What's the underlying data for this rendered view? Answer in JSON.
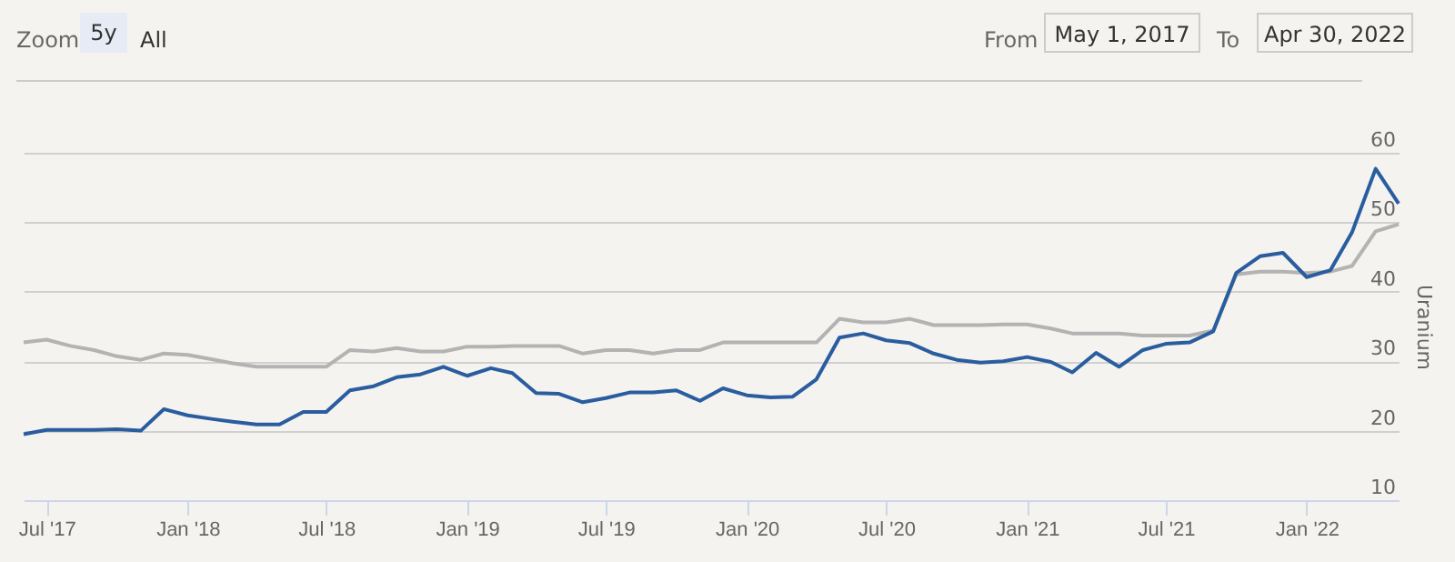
{
  "chart_data": {
    "type": "line",
    "ylabel": "Uranium",
    "annotations": [
      "Zoom",
      "5y",
      "All",
      "From",
      "May 1, 2017",
      "To",
      "Apr 30, 2022"
    ],
    "x": [
      "2017-06",
      "2017-07",
      "2017-08",
      "2017-09",
      "2017-10",
      "2017-11",
      "2017-12",
      "2018-01",
      "2018-02",
      "2018-03",
      "2018-04",
      "2018-05",
      "2018-06",
      "2018-07",
      "2018-08",
      "2018-09",
      "2018-10",
      "2018-11",
      "2018-12",
      "2019-01",
      "2019-02",
      "2019-03",
      "2019-04",
      "2019-05",
      "2019-06",
      "2019-07",
      "2019-08",
      "2019-09",
      "2019-10",
      "2019-11",
      "2019-12",
      "2020-01",
      "2020-02",
      "2020-03",
      "2020-04",
      "2020-05",
      "2020-06",
      "2020-07",
      "2020-08",
      "2020-09",
      "2020-10",
      "2020-11",
      "2020-12",
      "2021-01",
      "2021-02",
      "2021-03",
      "2021-04",
      "2021-05",
      "2021-06",
      "2021-07",
      "2021-08",
      "2021-09",
      "2021-10",
      "2021-11",
      "2021-12",
      "2022-01",
      "2022-02",
      "2022-03",
      "2022-04",
      "2022-05"
    ],
    "series": [
      {
        "color": "#b3b3b3",
        "values": [
          32.7,
          33.1,
          32.2,
          31.6,
          30.7,
          30.2,
          31.1,
          30.9,
          30.3,
          29.7,
          29.2,
          29.2,
          29.2,
          29.2,
          31.6,
          31.4,
          31.9,
          31.4,
          31.4,
          32.1,
          32.1,
          32.2,
          32.2,
          32.2,
          31.1,
          31.6,
          31.6,
          31.1,
          31.6,
          31.6,
          32.7,
          32.7,
          32.7,
          32.7,
          32.7,
          36.1,
          35.6,
          35.6,
          36.1,
          35.2,
          35.2,
          35.2,
          35.3,
          35.3,
          34.7,
          34.0,
          34.0,
          34.0,
          33.7,
          33.7,
          33.7,
          34.4,
          42.5,
          42.9,
          42.9,
          42.7,
          42.9,
          43.7,
          48.7,
          49.7
        ]
      },
      {
        "color": "#2a5d9f",
        "values": [
          19.5,
          20.1,
          20.1,
          20.1,
          20.2,
          20.0,
          23.1,
          22.2,
          21.7,
          21.3,
          20.9,
          20.9,
          22.7,
          22.7,
          25.8,
          26.4,
          27.7,
          28.1,
          29.2,
          27.9,
          29.0,
          28.3,
          25.4,
          25.3,
          24.1,
          24.7,
          25.5,
          25.5,
          25.8,
          24.3,
          26.1,
          25.1,
          24.8,
          24.9,
          27.4,
          33.4,
          34.0,
          33.0,
          32.6,
          31.1,
          30.2,
          29.8,
          30.0,
          30.6,
          29.9,
          28.4,
          31.2,
          29.2,
          31.6,
          32.5,
          32.7,
          34.3,
          42.7,
          45.1,
          45.6,
          42.1,
          43.1,
          48.5,
          57.7,
          52.7
        ]
      }
    ],
    "xlim": [
      "2017-06",
      "2022-05"
    ],
    "xticks": [
      {
        "value": "2017-07",
        "label": "Jul '17"
      },
      {
        "value": "2018-01",
        "label": "Jan '18"
      },
      {
        "value": "2018-07",
        "label": "Jul '18"
      },
      {
        "value": "2019-01",
        "label": "Jan '19"
      },
      {
        "value": "2019-07",
        "label": "Jul '19"
      },
      {
        "value": "2020-01",
        "label": "Jan '20"
      },
      {
        "value": "2020-07",
        "label": "Jul '20"
      },
      {
        "value": "2021-01",
        "label": "Jan '21"
      },
      {
        "value": "2021-07",
        "label": "Jul '21"
      },
      {
        "value": "2022-01",
        "label": "Jan '22"
      }
    ],
    "ylim": [
      10,
      60
    ],
    "yticks": [
      10,
      20,
      30,
      40,
      50,
      60
    ],
    "grid": "y"
  }
}
